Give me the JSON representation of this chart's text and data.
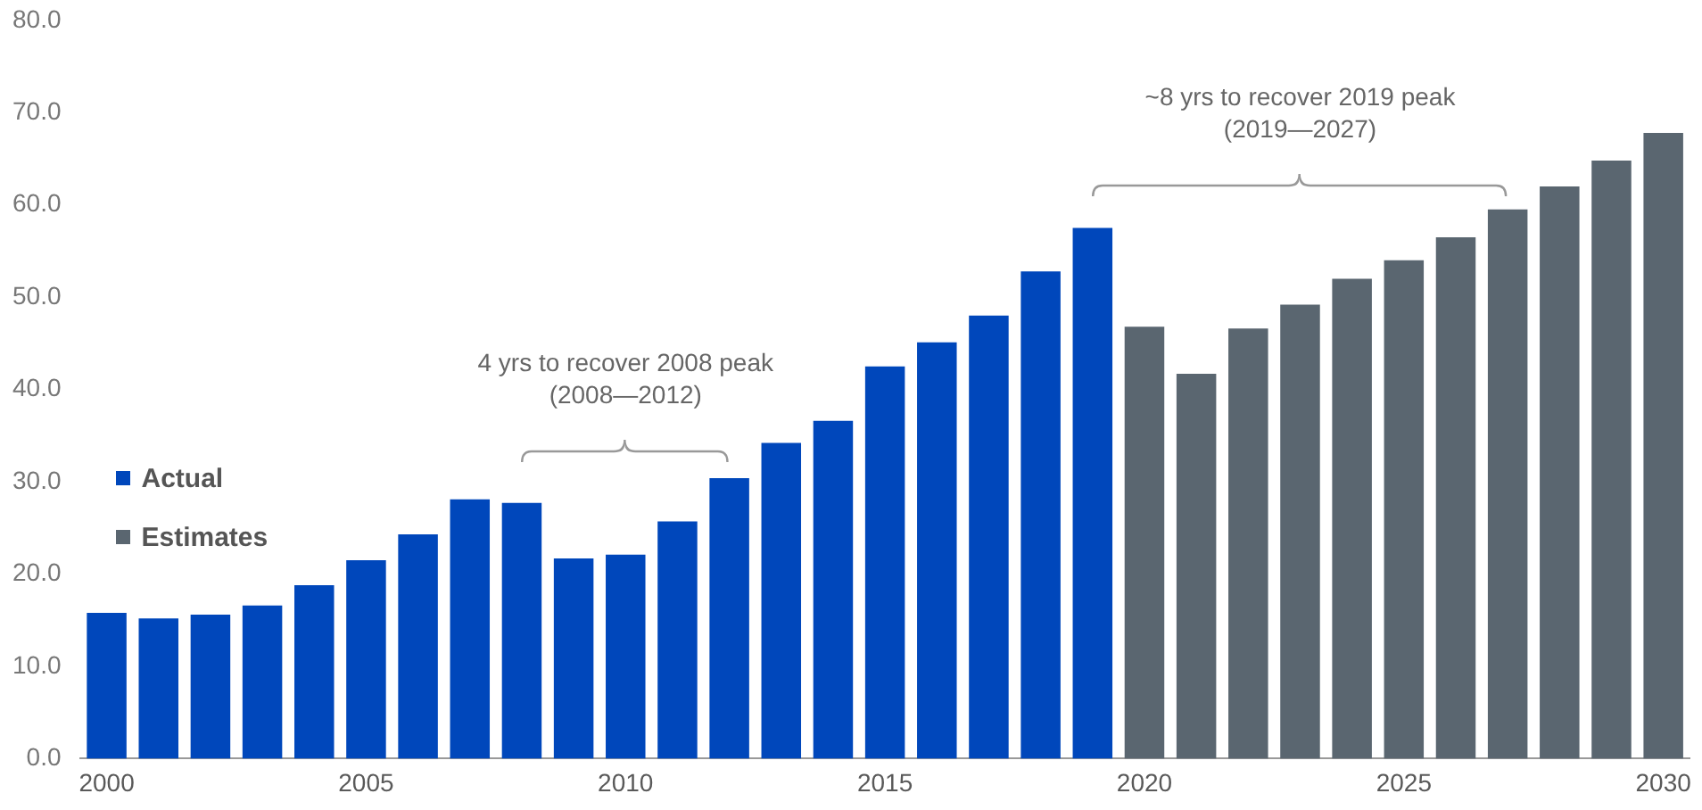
{
  "chart_data": {
    "type": "bar",
    "stacked": true,
    "categories": [
      "2000",
      null,
      null,
      null,
      null,
      "2005",
      null,
      null,
      null,
      null,
      "2010",
      null,
      null,
      null,
      null,
      "2015",
      null,
      null,
      null,
      null,
      "2020",
      null,
      null,
      null,
      null,
      "2025",
      null,
      null,
      null,
      null,
      "2030"
    ],
    "series": [
      {
        "name": "Actual",
        "color": "#0047bb",
        "values": [
          15.8,
          15.2,
          15.6,
          16.6,
          18.8,
          21.5,
          24.3,
          28.1,
          27.7,
          21.7,
          22.1,
          25.7,
          30.4,
          34.2,
          36.6,
          42.5,
          45.1,
          48.0,
          52.8,
          57.5,
          null,
          null,
          null,
          null,
          null,
          null,
          null,
          null,
          null,
          null,
          null
        ]
      },
      {
        "name": "Estimates",
        "color": "#5a6670",
        "values": [
          null,
          null,
          null,
          null,
          null,
          null,
          null,
          null,
          null,
          null,
          null,
          null,
          null,
          null,
          null,
          null,
          null,
          null,
          null,
          null,
          46.8,
          41.7,
          46.6,
          49.2,
          52.0,
          54.0,
          56.5,
          59.5,
          62.0,
          64.8,
          67.8
        ]
      }
    ],
    "ylim": [
      0,
      80
    ],
    "yticks": [
      {
        "value": 0,
        "label": "0.0"
      },
      {
        "value": 10,
        "label": "10.0"
      },
      {
        "value": 20,
        "label": "20.0"
      },
      {
        "value": 30,
        "label": "30.0"
      },
      {
        "value": 40,
        "label": "40.0"
      },
      {
        "value": 50,
        "label": "50.0"
      },
      {
        "value": 60,
        "label": "60.0"
      },
      {
        "value": 70,
        "label": "70.0"
      },
      {
        "value": 80,
        "label": "80.0"
      }
    ],
    "grid": false,
    "legend": "left",
    "annotations": [
      "4 yrs to recover 2008 peak\n(2008—2012)",
      "~8 yrs to recover 2019 peak\n(2019—2027)"
    ]
  }
}
